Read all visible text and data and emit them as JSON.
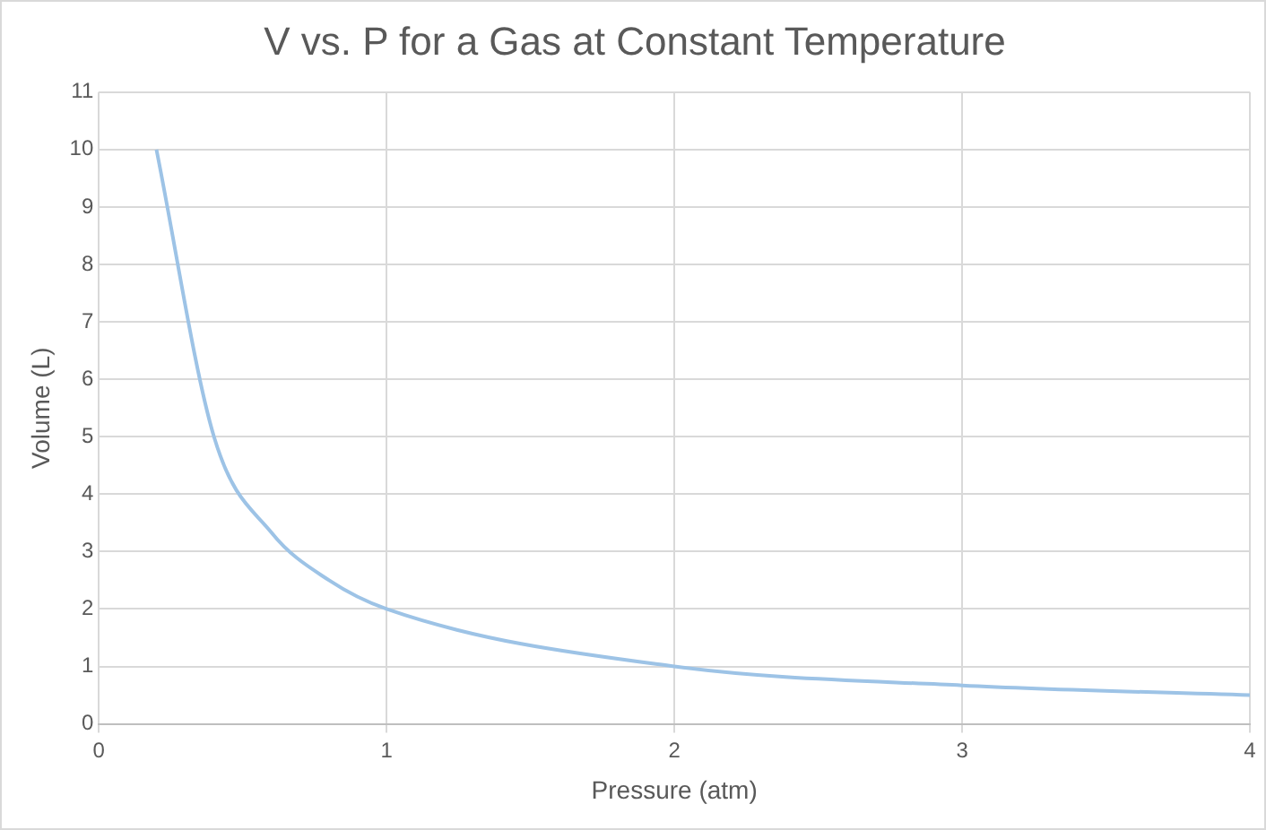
{
  "chart_data": {
    "type": "line",
    "title": "V vs. P for a Gas at Constant Temperature",
    "xlabel": "Pressure (atm)",
    "ylabel": "Volume (L)",
    "x": [
      0.2,
      0.4,
      0.6,
      0.8,
      1,
      2,
      3,
      4
    ],
    "series": [
      {
        "color": "#9dc3e6",
        "values": [
          10,
          5,
          3.33,
          2.5,
          2,
          1,
          0.67,
          0.5
        ]
      }
    ],
    "xlim": [
      0,
      4
    ],
    "xticks": [
      0,
      1,
      2,
      3,
      4
    ],
    "ylim": [
      0,
      11
    ],
    "yticks": [
      0,
      1,
      2,
      3,
      4,
      5,
      6,
      7,
      8,
      9,
      10,
      11
    ],
    "grid": true,
    "legend": false,
    "marker": "none",
    "line_style": "solid"
  }
}
